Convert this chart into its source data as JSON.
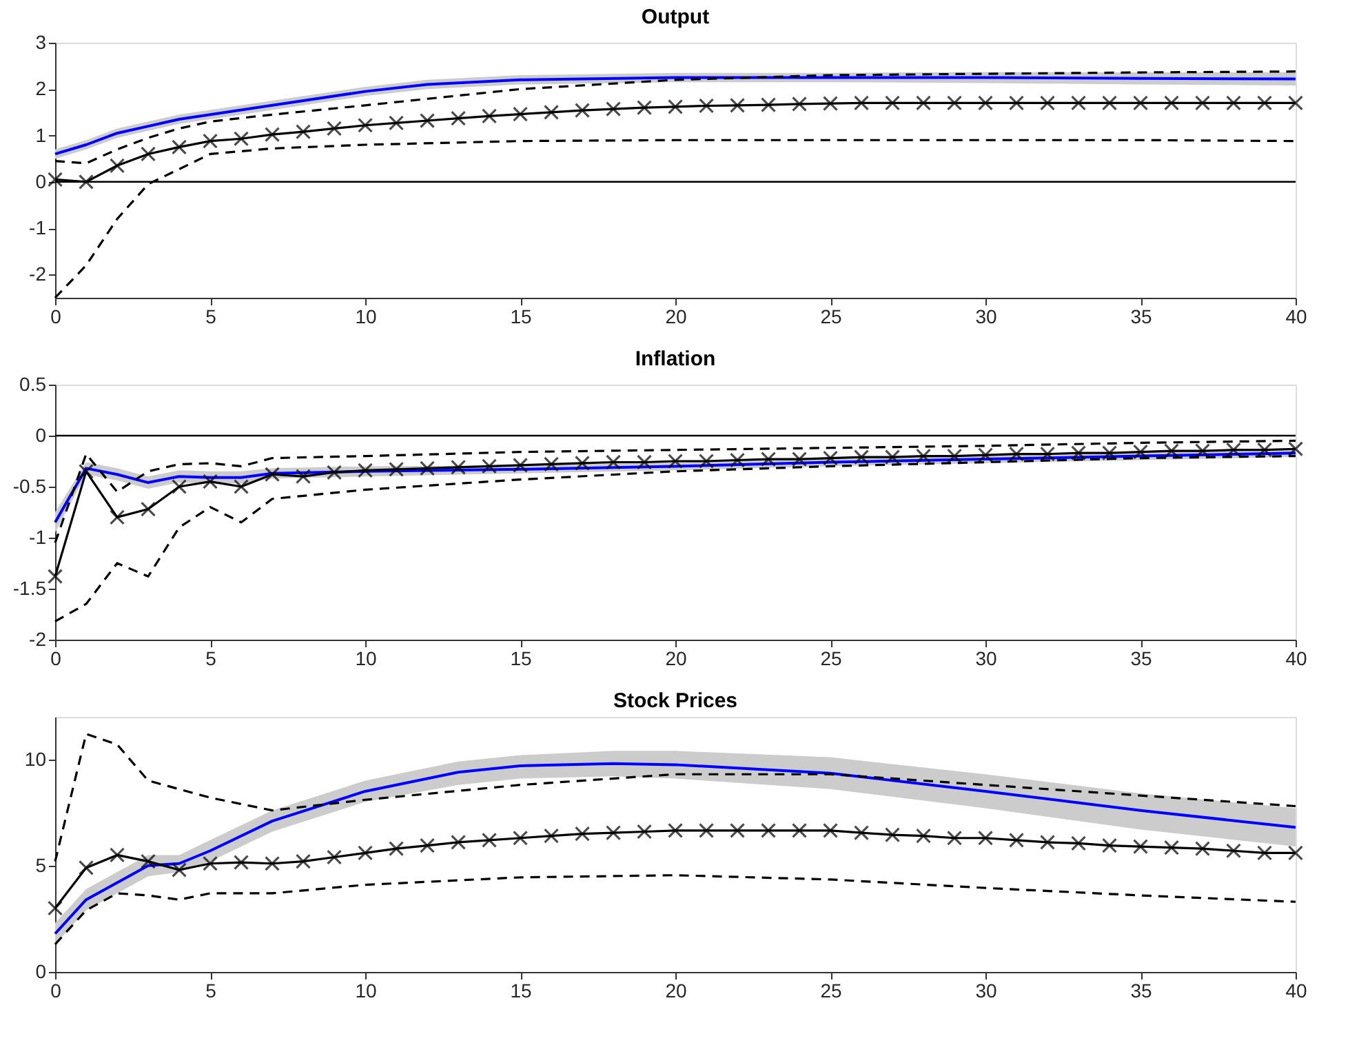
{
  "chart_data": [
    {
      "type": "line",
      "title": "Output",
      "xlim": [
        0,
        40
      ],
      "xticks": [
        0,
        5,
        10,
        15,
        20,
        25,
        30,
        35,
        40
      ],
      "ylim": [
        -2.5,
        3
      ],
      "yticks": [
        -2,
        -1,
        0,
        1,
        2,
        3
      ],
      "grid": false,
      "ref_lines": [
        {
          "axis": "y",
          "value": 0,
          "color": "#000000"
        }
      ],
      "series": [
        {
          "color": "#0000ff",
          "x": [
            0,
            1,
            2,
            3,
            4,
            5,
            7,
            10,
            12,
            15,
            20,
            25,
            30,
            35,
            40
          ],
          "values": [
            0.6,
            0.8,
            1.05,
            1.2,
            1.35,
            1.45,
            1.65,
            1.95,
            2.1,
            2.2,
            2.25,
            2.25,
            2.25,
            2.23,
            2.22
          ],
          "lower": [
            0.5,
            0.7,
            0.95,
            1.1,
            1.25,
            1.35,
            1.55,
            1.85,
            2.0,
            2.1,
            2.15,
            2.15,
            2.13,
            2.1,
            2.08
          ],
          "upper": [
            0.7,
            0.9,
            1.15,
            1.3,
            1.45,
            1.55,
            1.75,
            2.05,
            2.2,
            2.3,
            2.35,
            2.35,
            2.37,
            2.36,
            2.36
          ],
          "line_style": "solid",
          "marker": "none"
        },
        {
          "color": "#000000",
          "x": [
            0,
            1,
            2,
            3,
            4,
            5,
            7,
            10,
            15,
            20,
            25,
            30,
            35,
            40
          ],
          "values": [
            0.45,
            0.4,
            0.7,
            0.95,
            1.15,
            1.3,
            1.45,
            1.65,
            2.0,
            2.2,
            2.3,
            2.33,
            2.36,
            2.38
          ],
          "line_style": "dashed",
          "marker": "none"
        },
        {
          "color": "#000000",
          "x": [
            0,
            1,
            2,
            3,
            5,
            7,
            10,
            15,
            20,
            25,
            30,
            35,
            40
          ],
          "values": [
            -2.5,
            -1.8,
            -0.8,
            -0.05,
            0.6,
            0.72,
            0.8,
            0.88,
            0.9,
            0.9,
            0.9,
            0.9,
            0.88
          ],
          "line_style": "dashed",
          "marker": "none"
        },
        {
          "color": "#000000",
          "x": [
            0,
            1,
            2,
            3,
            4,
            5,
            6,
            7,
            8,
            9,
            10,
            11,
            12,
            13,
            14,
            15,
            16,
            17,
            18,
            19,
            20,
            21,
            22,
            23,
            24,
            25,
            26,
            27,
            28,
            29,
            30,
            31,
            32,
            33,
            34,
            35,
            36,
            37,
            38,
            39,
            40
          ],
          "values": [
            0.05,
            0,
            0.35,
            0.6,
            0.75,
            0.88,
            0.93,
            1.02,
            1.08,
            1.15,
            1.22,
            1.27,
            1.32,
            1.37,
            1.42,
            1.46,
            1.5,
            1.54,
            1.57,
            1.6,
            1.62,
            1.64,
            1.65,
            1.66,
            1.68,
            1.69,
            1.7,
            1.7,
            1.7,
            1.7,
            1.7,
            1.7,
            1.7,
            1.7,
            1.7,
            1.7,
            1.7,
            1.7,
            1.7,
            1.7,
            1.7
          ],
          "line_style": "solid",
          "marker": "cross"
        }
      ]
    },
    {
      "type": "line",
      "title": "Inflation",
      "xlim": [
        0,
        40
      ],
      "xticks": [
        0,
        5,
        10,
        15,
        20,
        25,
        30,
        35,
        40
      ],
      "ylim": [
        -2,
        0.5
      ],
      "yticks": [
        -2,
        -1.5,
        -1,
        -0.5,
        0,
        0.5
      ],
      "grid": false,
      "ref_lines": [
        {
          "axis": "y",
          "value": 0,
          "color": "#000000"
        }
      ],
      "series": [
        {
          "color": "#0000ff",
          "x": [
            0,
            1,
            2,
            3,
            4,
            5,
            6,
            7,
            10,
            15,
            20,
            25,
            30,
            35,
            40
          ],
          "values": [
            -0.85,
            -0.32,
            -0.38,
            -0.46,
            -0.4,
            -0.41,
            -0.41,
            -0.37,
            -0.35,
            -0.33,
            -0.3,
            -0.26,
            -0.23,
            -0.2,
            -0.17
          ],
          "lower": [
            -0.95,
            -0.38,
            -0.44,
            -0.52,
            -0.46,
            -0.47,
            -0.47,
            -0.42,
            -0.4,
            -0.37,
            -0.34,
            -0.3,
            -0.27,
            -0.24,
            -0.21
          ],
          "upper": [
            -0.75,
            -0.26,
            -0.32,
            -0.4,
            -0.34,
            -0.35,
            -0.35,
            -0.32,
            -0.3,
            -0.29,
            -0.26,
            -0.22,
            -0.19,
            -0.16,
            -0.13
          ],
          "line_style": "solid",
          "marker": "none"
        },
        {
          "color": "#000000",
          "x": [
            0,
            1,
            2,
            3,
            4,
            5,
            6,
            7,
            10,
            15,
            20,
            25,
            30,
            35,
            40
          ],
          "values": [
            -1.05,
            -0.18,
            -0.55,
            -0.35,
            -0.28,
            -0.27,
            -0.3,
            -0.22,
            -0.2,
            -0.16,
            -0.14,
            -0.12,
            -0.1,
            -0.07,
            -0.05
          ],
          "line_style": "dashed",
          "marker": "none"
        },
        {
          "color": "#000000",
          "x": [
            0,
            1,
            2,
            3,
            4,
            5,
            6,
            7,
            10,
            15,
            20,
            25,
            30,
            35,
            40
          ],
          "values": [
            -1.82,
            -1.65,
            -1.25,
            -1.38,
            -0.9,
            -0.7,
            -0.85,
            -0.62,
            -0.53,
            -0.43,
            -0.35,
            -0.3,
            -0.26,
            -0.22,
            -0.2
          ],
          "line_style": "dashed",
          "marker": "none"
        },
        {
          "color": "#000000",
          "x": [
            0,
            1,
            2,
            3,
            4,
            5,
            6,
            7,
            8,
            9,
            10,
            11,
            12,
            13,
            14,
            15,
            16,
            17,
            18,
            19,
            20,
            21,
            22,
            23,
            24,
            25,
            26,
            27,
            28,
            29,
            30,
            31,
            32,
            33,
            34,
            35,
            36,
            37,
            38,
            39,
            40
          ],
          "values": [
            -1.38,
            -0.35,
            -0.8,
            -0.72,
            -0.5,
            -0.45,
            -0.5,
            -0.38,
            -0.4,
            -0.36,
            -0.34,
            -0.33,
            -0.32,
            -0.31,
            -0.3,
            -0.29,
            -0.28,
            -0.27,
            -0.26,
            -0.26,
            -0.25,
            -0.25,
            -0.24,
            -0.23,
            -0.23,
            -0.22,
            -0.21,
            -0.21,
            -0.2,
            -0.2,
            -0.19,
            -0.18,
            -0.18,
            -0.17,
            -0.17,
            -0.16,
            -0.15,
            -0.15,
            -0.14,
            -0.14,
            -0.13
          ],
          "line_style": "solid",
          "marker": "cross"
        }
      ]
    },
    {
      "type": "line",
      "title": "Stock Prices",
      "xlim": [
        0,
        40
      ],
      "xticks": [
        0,
        5,
        10,
        15,
        20,
        25,
        30,
        35,
        40
      ],
      "ylim": [
        0,
        12
      ],
      "yticks": [
        0,
        5,
        10
      ],
      "grid": false,
      "series": [
        {
          "color": "#0000ff",
          "x": [
            0,
            1,
            2,
            3,
            4,
            5,
            7,
            10,
            13,
            15,
            18,
            20,
            25,
            30,
            35,
            40
          ],
          "values": [
            1.8,
            3.4,
            4.2,
            5.0,
            5.1,
            5.7,
            7.1,
            8.5,
            9.4,
            9.7,
            9.8,
            9.75,
            9.35,
            8.5,
            7.6,
            6.8
          ],
          "lower": [
            1.3,
            2.9,
            3.7,
            4.5,
            4.7,
            5.2,
            6.6,
            8.0,
            8.8,
            9.1,
            9.2,
            9.1,
            8.6,
            7.7,
            6.7,
            5.9
          ],
          "upper": [
            2.3,
            3.9,
            4.7,
            5.5,
            5.5,
            6.2,
            7.6,
            9.0,
            9.9,
            10.2,
            10.4,
            10.4,
            10.1,
            9.3,
            8.4,
            7.7
          ],
          "line_style": "solid",
          "marker": "none"
        },
        {
          "color": "#000000",
          "x": [
            0,
            1,
            2,
            3,
            5,
            7,
            10,
            15,
            20,
            25,
            30,
            35,
            40
          ],
          "values": [
            5.2,
            11.2,
            10.7,
            9.0,
            8.2,
            7.6,
            8.1,
            8.8,
            9.3,
            9.3,
            8.8,
            8.3,
            7.8
          ],
          "line_style": "dashed",
          "marker": "none"
        },
        {
          "color": "#000000",
          "x": [
            0,
            1,
            2,
            3,
            4,
            5,
            7,
            10,
            15,
            20,
            25,
            30,
            35,
            40
          ],
          "values": [
            1.3,
            2.9,
            3.7,
            3.6,
            3.4,
            3.7,
            3.7,
            4.1,
            4.45,
            4.55,
            4.35,
            3.95,
            3.6,
            3.3
          ],
          "line_style": "dashed",
          "marker": "none"
        },
        {
          "color": "#000000",
          "x": [
            0,
            1,
            2,
            3,
            4,
            5,
            6,
            7,
            8,
            9,
            10,
            11,
            12,
            13,
            14,
            15,
            16,
            17,
            18,
            19,
            20,
            21,
            22,
            23,
            24,
            25,
            26,
            27,
            28,
            29,
            30,
            31,
            32,
            33,
            34,
            35,
            36,
            37,
            38,
            39,
            40
          ],
          "values": [
            3.0,
            4.9,
            5.5,
            5.2,
            4.8,
            5.1,
            5.15,
            5.1,
            5.2,
            5.4,
            5.6,
            5.8,
            5.95,
            6.1,
            6.2,
            6.3,
            6.4,
            6.5,
            6.55,
            6.6,
            6.65,
            6.65,
            6.65,
            6.65,
            6.65,
            6.65,
            6.55,
            6.45,
            6.4,
            6.3,
            6.3,
            6.2,
            6.1,
            6.05,
            5.95,
            5.9,
            5.85,
            5.8,
            5.7,
            5.6,
            5.6
          ],
          "line_style": "solid",
          "marker": "cross"
        }
      ]
    }
  ]
}
